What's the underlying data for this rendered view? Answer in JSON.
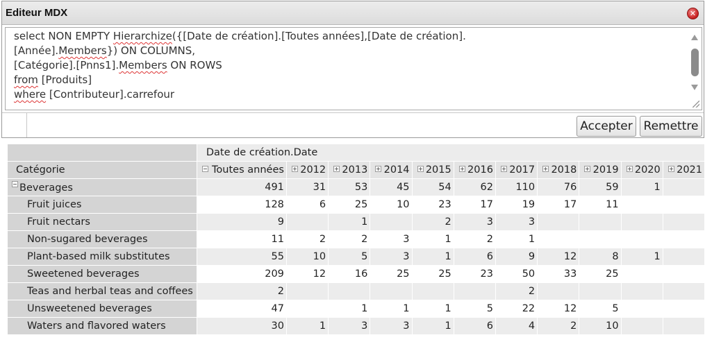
{
  "editor": {
    "title": "Editeur MDX",
    "accept_label": "Accepter",
    "reset_label": "Remettre"
  },
  "pivot": {
    "column_axis_caption": "Date de création.Date",
    "row_axis_name": "Catégorie",
    "columns": [
      "Toutes années",
      "2012",
      "2013",
      "2014",
      "2015",
      "2016",
      "2017",
      "2018",
      "2019",
      "2020",
      "2021"
    ],
    "rows": [
      {
        "label": "Beverages",
        "level": 0,
        "values": [
          "491",
          "31",
          "53",
          "45",
          "54",
          "62",
          "110",
          "76",
          "59",
          "1",
          ""
        ]
      },
      {
        "label": "Fruit juices",
        "level": 1,
        "values": [
          "128",
          "6",
          "25",
          "10",
          "23",
          "17",
          "19",
          "17",
          "11",
          "",
          ""
        ]
      },
      {
        "label": "Fruit nectars",
        "level": 1,
        "values": [
          "9",
          "",
          "1",
          "",
          "2",
          "3",
          "3",
          "",
          "",
          "",
          ""
        ]
      },
      {
        "label": "Non-sugared beverages",
        "level": 1,
        "values": [
          "11",
          "2",
          "2",
          "3",
          "1",
          "2",
          "1",
          "",
          "",
          "",
          ""
        ]
      },
      {
        "label": "Plant-based milk substitutes",
        "level": 1,
        "values": [
          "55",
          "10",
          "5",
          "3",
          "1",
          "6",
          "9",
          "12",
          "8",
          "1",
          ""
        ]
      },
      {
        "label": "Sweetened beverages",
        "level": 1,
        "values": [
          "209",
          "12",
          "16",
          "25",
          "25",
          "23",
          "50",
          "33",
          "25",
          "",
          ""
        ]
      },
      {
        "label": "Teas and herbal teas and coffees",
        "level": 1,
        "values": [
          "2",
          "",
          "",
          "",
          "",
          "",
          "2",
          "",
          "",
          "",
          ""
        ]
      },
      {
        "label": "Unsweetened beverages",
        "level": 1,
        "values": [
          "47",
          "",
          "1",
          "1",
          "1",
          "5",
          "22",
          "12",
          "5",
          "",
          ""
        ]
      },
      {
        "label": "Waters and flavored waters",
        "level": 1,
        "values": [
          "30",
          "1",
          "3",
          "3",
          "1",
          "6",
          "4",
          "2",
          "10",
          "",
          ""
        ]
      }
    ]
  },
  "mdx_line_1a": "select NON EMPTY ",
  "mdx_line_1b": "Hierarchize",
  "mdx_line_1c": "({[Date de création].[Toutes années],[Date de création].",
  "mdx_line_2a": "[Année].",
  "mdx_line_2b": "Members",
  "mdx_line_2c": "}) ON COLUMNS,",
  "mdx_line_3a": "[Catégorie].[Pnns1].",
  "mdx_line_3b": "Members",
  "mdx_line_3c": " ON ROWS",
  "mdx_line_4a": "from",
  "mdx_line_4b": " [Produits]",
  "mdx_line_5a": "where",
  "mdx_line_5b": " [Contributeur].carrefour"
}
